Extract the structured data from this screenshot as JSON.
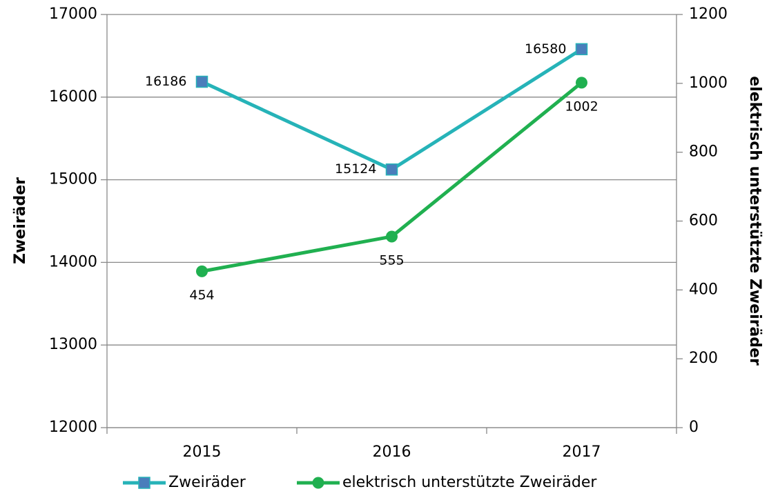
{
  "chart_data": {
    "type": "line",
    "categories": [
      "2015",
      "2016",
      "2017"
    ],
    "y_label": "Zweiräder",
    "y2_label": "elektrisch unterstützte Zweiräder",
    "ylim": [
      12000,
      17000
    ],
    "yticks": [
      12000,
      13000,
      14000,
      15000,
      16000,
      17000
    ],
    "y2lim": [
      0,
      1200
    ],
    "y2ticks": [
      0,
      200,
      400,
      600,
      800,
      1000,
      1200
    ],
    "grid": true,
    "legend": "bottom",
    "series": [
      {
        "name": "Zweiräder",
        "color": "#26b3b8",
        "marker": "square",
        "marker_color": "#4a7ebb",
        "values": [
          16186,
          15124,
          16580
        ]
      },
      {
        "name": "elektrisch unterstützte Zweiräder",
        "color": "#20b050",
        "marker": "circle",
        "marker_color": "#20b050",
        "axis": "y2",
        "values": [
          454,
          555,
          1002
        ]
      }
    ]
  }
}
